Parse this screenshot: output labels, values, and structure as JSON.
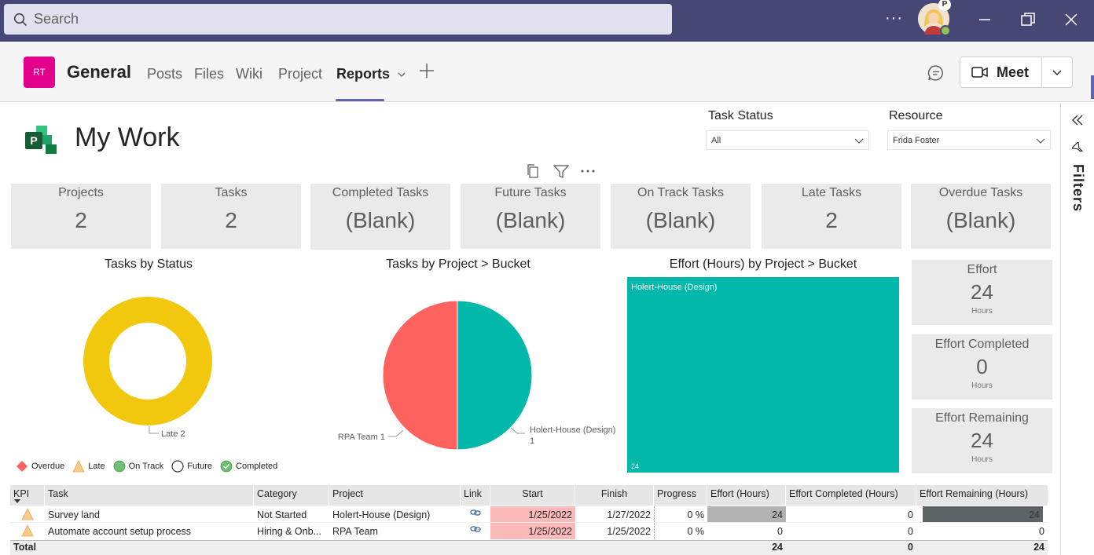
{
  "titlebar": {
    "search_placeholder": "Search",
    "more_label": "···",
    "avatar_badge": "P"
  },
  "channel": {
    "team_initials": "RT",
    "name": "General",
    "tabs": [
      "Posts",
      "Files",
      "Wiki",
      "Project",
      "Reports"
    ],
    "active_tab": "Reports",
    "meet_label": "Meet"
  },
  "report": {
    "title": "My Work",
    "slicers": {
      "task_status": {
        "label": "Task Status",
        "value": "All"
      },
      "resource": {
        "label": "Resource",
        "value": "Frida Foster"
      }
    },
    "cards": [
      {
        "title": "Projects",
        "value": "2"
      },
      {
        "title": "Tasks",
        "value": "2"
      },
      {
        "title": "Completed Tasks",
        "value": "(Blank)"
      },
      {
        "title": "Future Tasks",
        "value": "(Blank)"
      },
      {
        "title": "On Track Tasks",
        "value": "(Blank)"
      },
      {
        "title": "Late Tasks",
        "value": "2"
      },
      {
        "title": "Overdue Tasks",
        "value": "(Blank)"
      }
    ],
    "effort_cards": [
      {
        "title": "Effort",
        "value": "24",
        "unit": "Hours"
      },
      {
        "title": "Effort Completed",
        "value": "0",
        "unit": "Hours"
      },
      {
        "title": "Effort Remaining",
        "value": "24",
        "unit": "Hours"
      }
    ],
    "legend": [
      "Overdue",
      "Late",
      "On Track",
      "Future",
      "Completed"
    ],
    "filters_label": "Filters"
  },
  "chart_data": [
    {
      "type": "pie",
      "title": "Tasks by Status",
      "categories": [
        "Late"
      ],
      "values": [
        2
      ],
      "labels": [
        "Late 2"
      ],
      "colors": [
        "#f2c80f"
      ]
    },
    {
      "type": "pie",
      "title": "Tasks by Project > Bucket",
      "categories": [
        "RPA Team",
        "Holert-House (Design)"
      ],
      "values": [
        1,
        1
      ],
      "labels": [
        "RPA Team 1",
        "Holert-House (Design)",
        "1"
      ],
      "colors": [
        "#fd625e",
        "#01b8aa"
      ]
    },
    {
      "type": "treemap",
      "title": "Effort (Hours) by Project > Bucket",
      "categories": [
        "Holert-House (Design)"
      ],
      "values": [
        24
      ],
      "value_label": "24",
      "colors": [
        "#01b8aa"
      ]
    }
  ],
  "table": {
    "headers": [
      "KPI",
      "Task",
      "Category",
      "Project",
      "Link",
      "Start",
      "Finish",
      "Progress",
      "Effort (Hours)",
      "Effort Completed (Hours)",
      "Effort Remaining (Hours)"
    ],
    "rows": [
      {
        "task": "Survey land",
        "category": "Not Started",
        "project": "Holert-House (Design)",
        "start": "1/25/2022",
        "finish": "1/27/2022",
        "progress": "0 %",
        "effort": "24",
        "effort_completed": "0",
        "effort_remaining": "24"
      },
      {
        "task": "Automate account setup process",
        "category": "Hiring & Onb...",
        "project": "RPA Team",
        "start": "1/25/2022",
        "finish": "1/25/2022",
        "progress": "0 %",
        "effort": "0",
        "effort_completed": "0",
        "effort_remaining": "0"
      }
    ],
    "total": {
      "label": "Total",
      "effort": "24",
      "effort_completed": "0",
      "effort_remaining": "24"
    }
  },
  "colors": {
    "teams_purple": "#464775",
    "accent": "#6264a7",
    "late_yellow": "#f2c80f",
    "teal": "#01b8aa",
    "red": "#fd625e",
    "late_cell": "#fbb9b9"
  }
}
